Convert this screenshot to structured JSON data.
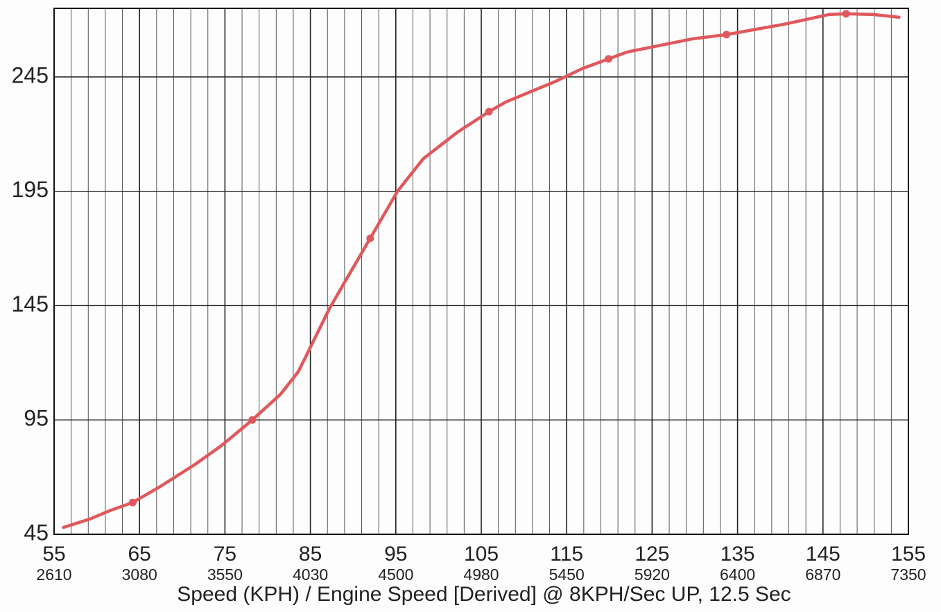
{
  "chart_data": {
    "type": "line",
    "xlabel": "Speed (KPH) / Engine Speed [Derived] @ 8KPH/Sec UP, 12.5 Sec",
    "x": [
      56.1,
      59.2,
      61.7,
      64.2,
      67.3,
      71.4,
      74.6,
      78.2,
      81.5,
      83.6,
      85.2,
      87.2,
      89.3,
      92.0,
      95.2,
      98.2,
      102.2,
      105.9,
      107.9,
      113.6,
      116.8,
      119.9,
      122.1,
      129.8,
      133.7,
      140.4,
      145.7,
      147.7,
      150.9,
      153.9
    ],
    "series": [
      {
        "color": "#e0585c",
        "values": [
          48.0,
          51.7,
          55.6,
          58.9,
          65.6,
          75.3,
          83.8,
          95.0,
          106.2,
          116.2,
          128.3,
          143.5,
          157.1,
          174.4,
          195.0,
          209.2,
          220.8,
          229.8,
          234.1,
          242.9,
          248.6,
          252.9,
          255.9,
          261.7,
          263.5,
          268.0,
          272.3,
          272.6,
          272.3,
          271.1
        ]
      }
    ],
    "markers": {
      "x": [
        64.2,
        78.2,
        92.0,
        105.9,
        119.9,
        133.7,
        147.7
      ],
      "y": [
        58.9,
        95.0,
        174.4,
        229.8,
        252.9,
        263.5,
        272.6
      ]
    },
    "xlim": [
      55,
      155
    ],
    "ylim": [
      45,
      275
    ],
    "xticks": [
      55,
      65,
      75,
      85,
      95,
      105,
      115,
      125,
      135,
      145,
      155
    ],
    "rpm_ticks": [
      2610,
      3080,
      3550,
      4030,
      4500,
      4980,
      5450,
      5920,
      6400,
      6870,
      7350
    ],
    "yticks": [
      45,
      95,
      145,
      195,
      245
    ],
    "x_minor_step": 2,
    "grid": true
  }
}
